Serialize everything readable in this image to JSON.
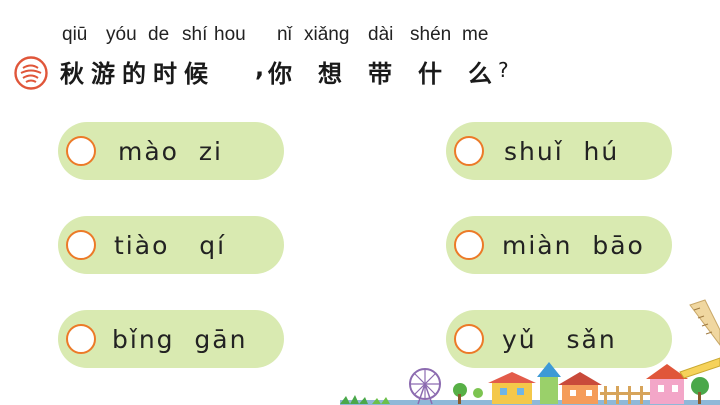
{
  "title": {
    "pinyin": [
      "qiū",
      "yóu",
      "de",
      "shí",
      "hou",
      "nǐ",
      "xiǎng",
      "dài",
      "shén",
      "me"
    ],
    "characters": [
      "秋",
      "游",
      "的",
      "时",
      "候",
      ",",
      "你",
      "想",
      "带",
      "什",
      "么",
      "?"
    ]
  },
  "options": [
    {
      "label": "mào  zi"
    },
    {
      "label": "shuǐ  hú"
    },
    {
      "label": "tiào   qí"
    },
    {
      "label": "miàn  bāo"
    },
    {
      "label": "bǐng  gān"
    },
    {
      "label": "yǔ   sǎn"
    }
  ],
  "colors": {
    "pill": "#d9eab1",
    "circle_border": "#ec7a28",
    "icon": "#e0563a"
  },
  "icons": {
    "title_icon": "swirl-icon",
    "decoration": "town-illustration"
  }
}
